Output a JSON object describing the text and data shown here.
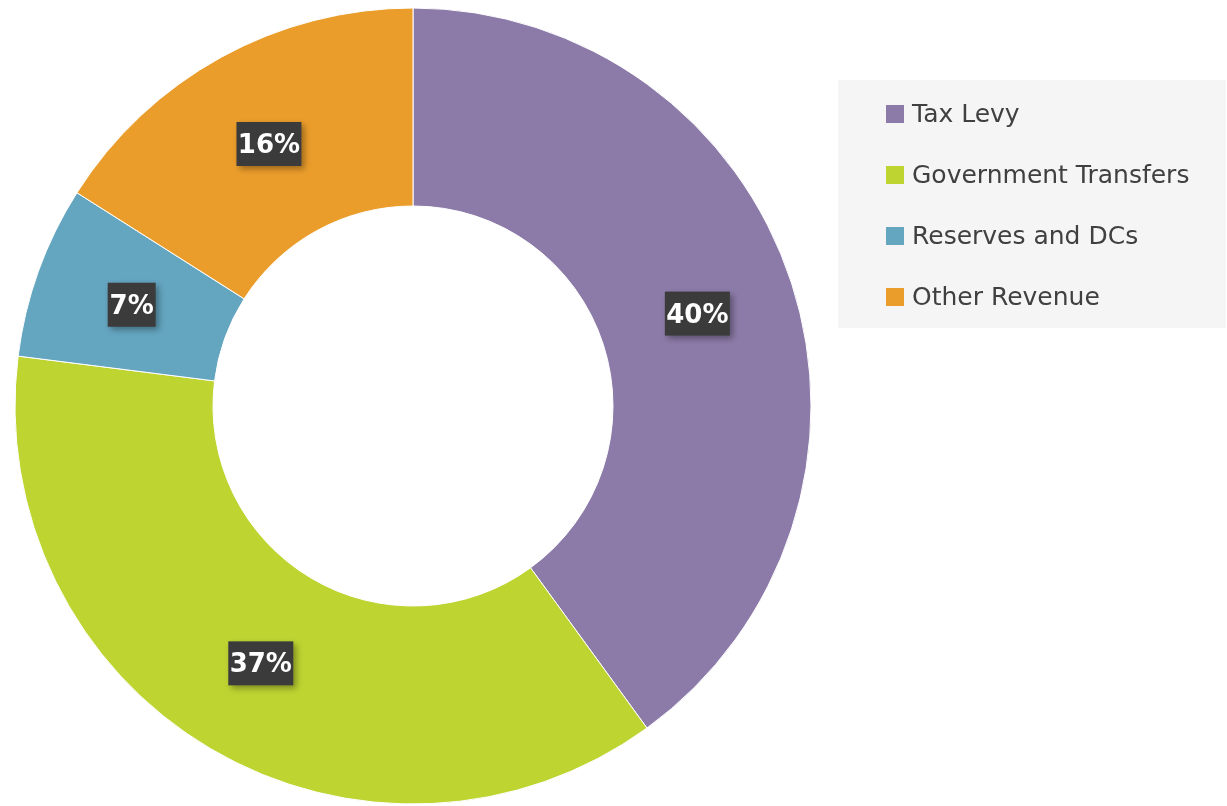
{
  "chart_data": {
    "type": "donut",
    "categories": [
      "Tax Levy",
      "Government Transfers",
      "Reserves and DCs",
      "Other Revenue"
    ],
    "values": [
      40,
      37,
      7,
      16
    ],
    "colors": [
      "#8c7ba8",
      "#bed431",
      "#64a5c0",
      "#eb9d2b"
    ],
    "value_labels": [
      "40%",
      "37%",
      "7%",
      "16%"
    ],
    "legend": "right"
  }
}
